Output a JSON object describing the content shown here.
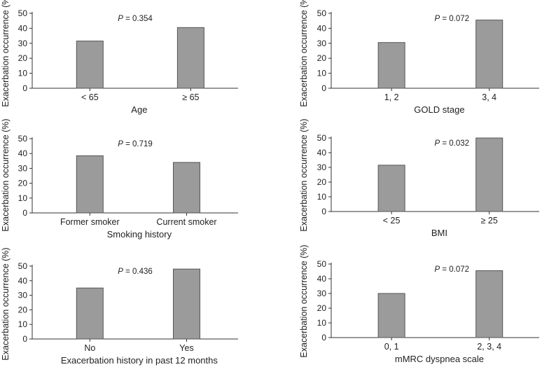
{
  "chart_data": [
    {
      "type": "bar",
      "title": "",
      "ylabel": "Exacerbation occurrence (%)",
      "xlabel": "Age",
      "categories": [
        "< 65",
        "≥ 65"
      ],
      "values": [
        31.5,
        40.5
      ],
      "ylim": [
        0,
        50
      ],
      "yticks": [
        0,
        10,
        20,
        30,
        40,
        50
      ],
      "annotation": {
        "prefix": "P",
        "text": " = 0.354"
      },
      "color": "#9b9b9b"
    },
    {
      "type": "bar",
      "title": "",
      "ylabel": "Exacerbation occurrence (%)",
      "xlabel": "GOLD stage",
      "categories": [
        "1, 2",
        "3, 4"
      ],
      "values": [
        30.5,
        45.5
      ],
      "ylim": [
        0,
        50
      ],
      "yticks": [
        0,
        10,
        20,
        30,
        40,
        50
      ],
      "annotation": {
        "prefix": "P",
        "text": " = 0.072"
      },
      "color": "#9b9b9b"
    },
    {
      "type": "bar",
      "title": "",
      "ylabel": "Exacerbation occurrence (%)",
      "xlabel": "Smoking history",
      "categories": [
        "Former smoker",
        "Current smoker"
      ],
      "values": [
        38.5,
        34.0
      ],
      "ylim": [
        0,
        50
      ],
      "yticks": [
        0,
        10,
        20,
        30,
        40,
        50
      ],
      "annotation": {
        "prefix": "P",
        "text": " = 0.719"
      },
      "color": "#9b9b9b"
    },
    {
      "type": "bar",
      "title": "",
      "ylabel": "Exacerbation occurrence (%)",
      "xlabel": "BMI",
      "categories": [
        "< 25",
        "≥ 25"
      ],
      "values": [
        31.5,
        50.0
      ],
      "ylim": [
        0,
        50
      ],
      "yticks": [
        0,
        10,
        20,
        30,
        40,
        50
      ],
      "annotation": {
        "prefix": "P",
        "text": " = 0.032"
      },
      "color": "#9b9b9b"
    },
    {
      "type": "bar",
      "title": "",
      "ylabel": "Exacerbation occurrence (%)",
      "xlabel": "Exacerbation history in past 12 months",
      "categories": [
        "No",
        "Yes"
      ],
      "values": [
        35.0,
        48.0
      ],
      "ylim": [
        0,
        50
      ],
      "yticks": [
        0,
        10,
        20,
        30,
        40,
        50
      ],
      "annotation": {
        "prefix": "P",
        "text": " = 0.436"
      },
      "color": "#9b9b9b"
    },
    {
      "type": "bar",
      "title": "",
      "ylabel": "Exacerbation occurrence (%)",
      "xlabel": "mMRC dyspnea scale",
      "categories": [
        "0, 1",
        "2, 3, 4"
      ],
      "values": [
        30.0,
        45.5
      ],
      "ylim": [
        0,
        50
      ],
      "yticks": [
        0,
        10,
        20,
        30,
        40,
        50
      ],
      "annotation": {
        "prefix": "P",
        "text": " = 0.072"
      },
      "color": "#9b9b9b"
    }
  ]
}
